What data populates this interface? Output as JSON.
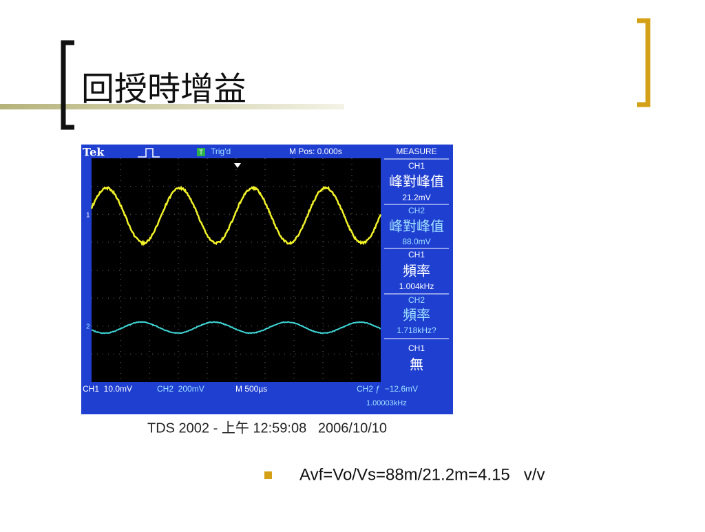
{
  "header": {
    "title": "回授時增益"
  },
  "scope": {
    "top": {
      "brand": "Tek",
      "trigger_icon": "T",
      "trigger_status": "Trig'd",
      "position": "M Pos: 0.000s"
    },
    "markers": {
      "ch1": "1",
      "ch2": "2"
    },
    "measure": {
      "title": "MEASURE",
      "items": [
        {
          "channel": "CH1",
          "label": "峰對峰值",
          "value": "21.2mV"
        },
        {
          "channel": "CH2",
          "label": "峰對峰值",
          "value": "88.0mV"
        },
        {
          "channel": "CH1",
          "label": "頻率",
          "value": "1.004kHz"
        },
        {
          "channel": "CH2",
          "label": "頻率",
          "value": "1.718kHz?"
        },
        {
          "channel": "CH1",
          "label": "無"
        }
      ]
    },
    "bottom": {
      "ch1": "CH1  10.0mV",
      "ch2": "CH2  200mV",
      "timebase": "M 500µs",
      "trigger": "CH2 ƒ  −12.6mV",
      "frequency": "1.00003kHz"
    }
  },
  "caption": "TDS 2002 - 上午 12:59:08   2006/10/10",
  "bullets": [
    "Avf=Vo/Vs=88m/21.2m=4.15   v/v"
  ]
}
